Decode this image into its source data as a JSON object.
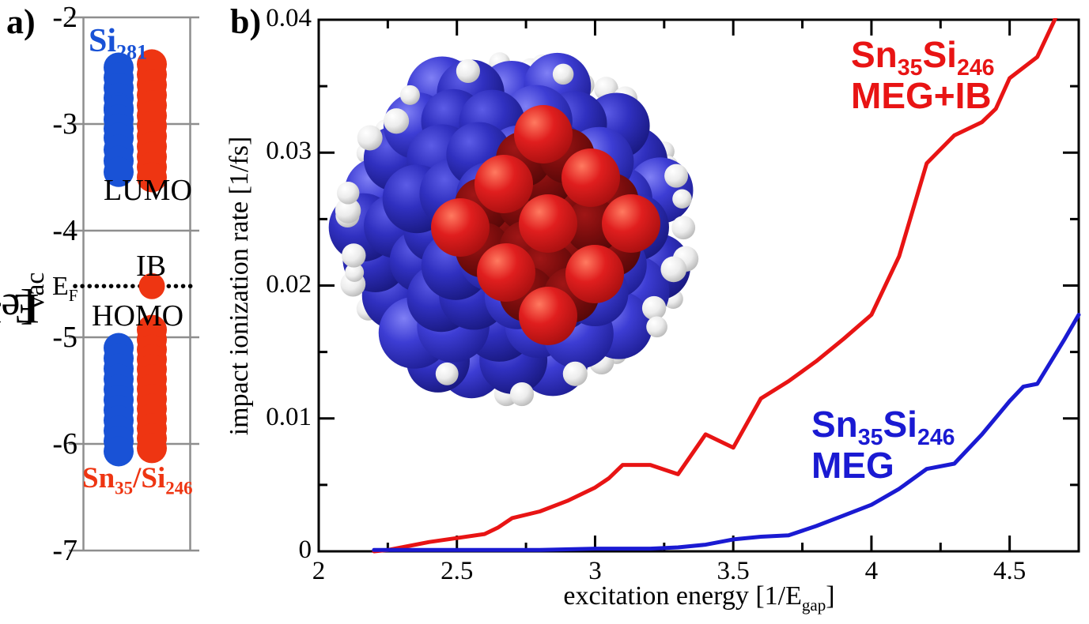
{
  "panel_labels": {
    "a": "a)",
    "b": "b)"
  },
  "inset": {
    "description": "Sn35Si246 nanocrystal ball-and-stick model",
    "atom_colors": {
      "si_shell": "#3d3dd4",
      "sn_core": "#d81818",
      "sn_core_shadow": "#8a0f0f",
      "hydrogen": "#f2f2f2"
    }
  },
  "chart_data": [
    {
      "type": "scatter",
      "title": "energy level diagram",
      "ylabel_parts": {
        "pre": "E - E",
        "sub": "vac",
        "post": " [eV]"
      },
      "ylim": [
        -7,
        -2
      ],
      "y_ticks": [
        -2,
        -3,
        -4,
        -5,
        -6,
        -7
      ],
      "y_tick_labels": [
        "-2",
        "-3",
        "-4",
        "-5",
        "-6",
        "-7"
      ],
      "grid_color": "#8e8e8e",
      "fermi_level": -4.52,
      "series": [
        {
          "name": "Si281",
          "color": "#1952d6",
          "column_x": 150,
          "lumo_ranges": [
            [
              -2.47,
              -2.85
            ],
            [
              -2.87,
              -3.13
            ],
            [
              -3.24,
              -3.45
            ]
          ],
          "homo_ranges": [
            [
              -5.1,
              -6.07
            ]
          ]
        },
        {
          "name": "Sn35/Si246",
          "color": "#ee3512",
          "column_x": 192,
          "lumo_ranges": [
            [
              -2.44,
              -3.5
            ]
          ],
          "homo_ranges": [
            [
              -4.93,
              -6.04
            ]
          ],
          "ib_level": -4.52
        }
      ],
      "annotations": {
        "si_label": {
          "main": "Si",
          "sub": "281"
        },
        "snsi_label": {
          "p1": "Sn",
          "s1": "35",
          "p2": "/Si",
          "s2": "246"
        },
        "lumo": "LUMO",
        "homo": "HOMO",
        "ib": "IB",
        "ef": {
          "main": "E",
          "sub": "F"
        }
      }
    },
    {
      "type": "line",
      "xlabel_parts": {
        "pre": "excitation energy [1/E",
        "sub": "gap",
        "post": "]"
      },
      "ylabel": "impact ionization rate [1/fs]",
      "xlim": [
        2,
        4.75
      ],
      "ylim": [
        0,
        0.04
      ],
      "x_ticks": [
        2,
        2.5,
        3,
        3.5,
        4,
        4.5
      ],
      "x_tick_labels": [
        "2",
        "2.5",
        "3",
        "3.5",
        "4",
        "4.5"
      ],
      "x_minor_ticks": [
        2.25,
        2.75,
        3.25,
        3.75,
        4.25
      ],
      "y_ticks": [
        0,
        0.01,
        0.02,
        0.03,
        0.04
      ],
      "y_tick_labels": [
        "0",
        "0.01",
        "0.02",
        "0.03",
        "0.04"
      ],
      "y_minor_ticks": [
        0.005,
        0.015,
        0.025,
        0.035
      ],
      "series": [
        {
          "name": "Sn35Si246 MEG+IB",
          "color": "#e81414",
          "x": [
            2.2,
            2.25,
            2.3,
            2.4,
            2.5,
            2.6,
            2.65,
            2.7,
            2.8,
            2.9,
            3.0,
            3.05,
            3.1,
            3.2,
            3.3,
            3.4,
            3.5,
            3.6,
            3.7,
            3.8,
            3.9,
            4.0,
            4.1,
            4.2,
            4.3,
            4.4,
            4.45,
            4.5,
            4.6,
            4.67
          ],
          "y": [
            0.0,
            0.0001,
            0.0003,
            0.0007,
            0.001,
            0.0013,
            0.0018,
            0.0025,
            0.003,
            0.0038,
            0.0048,
            0.0055,
            0.0065,
            0.0065,
            0.0058,
            0.0088,
            0.0078,
            0.0115,
            0.0128,
            0.0143,
            0.016,
            0.0178,
            0.0222,
            0.0292,
            0.0313,
            0.0323,
            0.0333,
            0.0356,
            0.0372,
            0.0403
          ]
        },
        {
          "name": "Sn35Si246 MEG",
          "color": "#1a1ad2",
          "x": [
            2.2,
            2.4,
            2.6,
            2.8,
            3.0,
            3.2,
            3.3,
            3.4,
            3.5,
            3.6,
            3.7,
            3.8,
            3.9,
            4.0,
            4.1,
            4.2,
            4.3,
            4.4,
            4.5,
            4.55,
            4.6,
            4.7,
            4.75
          ],
          "y": [
            0.0001,
            0.0001,
            0.0001,
            0.0001,
            0.0002,
            0.0002,
            0.0003,
            0.0005,
            0.0009,
            0.0011,
            0.0012,
            0.0019,
            0.0027,
            0.0035,
            0.0047,
            0.0062,
            0.0066,
            0.0088,
            0.0113,
            0.0124,
            0.0126,
            0.016,
            0.0178
          ]
        }
      ],
      "legends": [
        {
          "line1_parts": {
            "p1": "Sn",
            "s1": "35",
            "p2": "Si",
            "s2": "246"
          },
          "line2": "MEG+IB",
          "color": "#e81414"
        },
        {
          "line1_parts": {
            "p1": "Sn",
            "s1": "35",
            "p2": "Si",
            "s2": "246"
          },
          "line2": "MEG",
          "color": "#1a1ad2"
        }
      ]
    }
  ]
}
